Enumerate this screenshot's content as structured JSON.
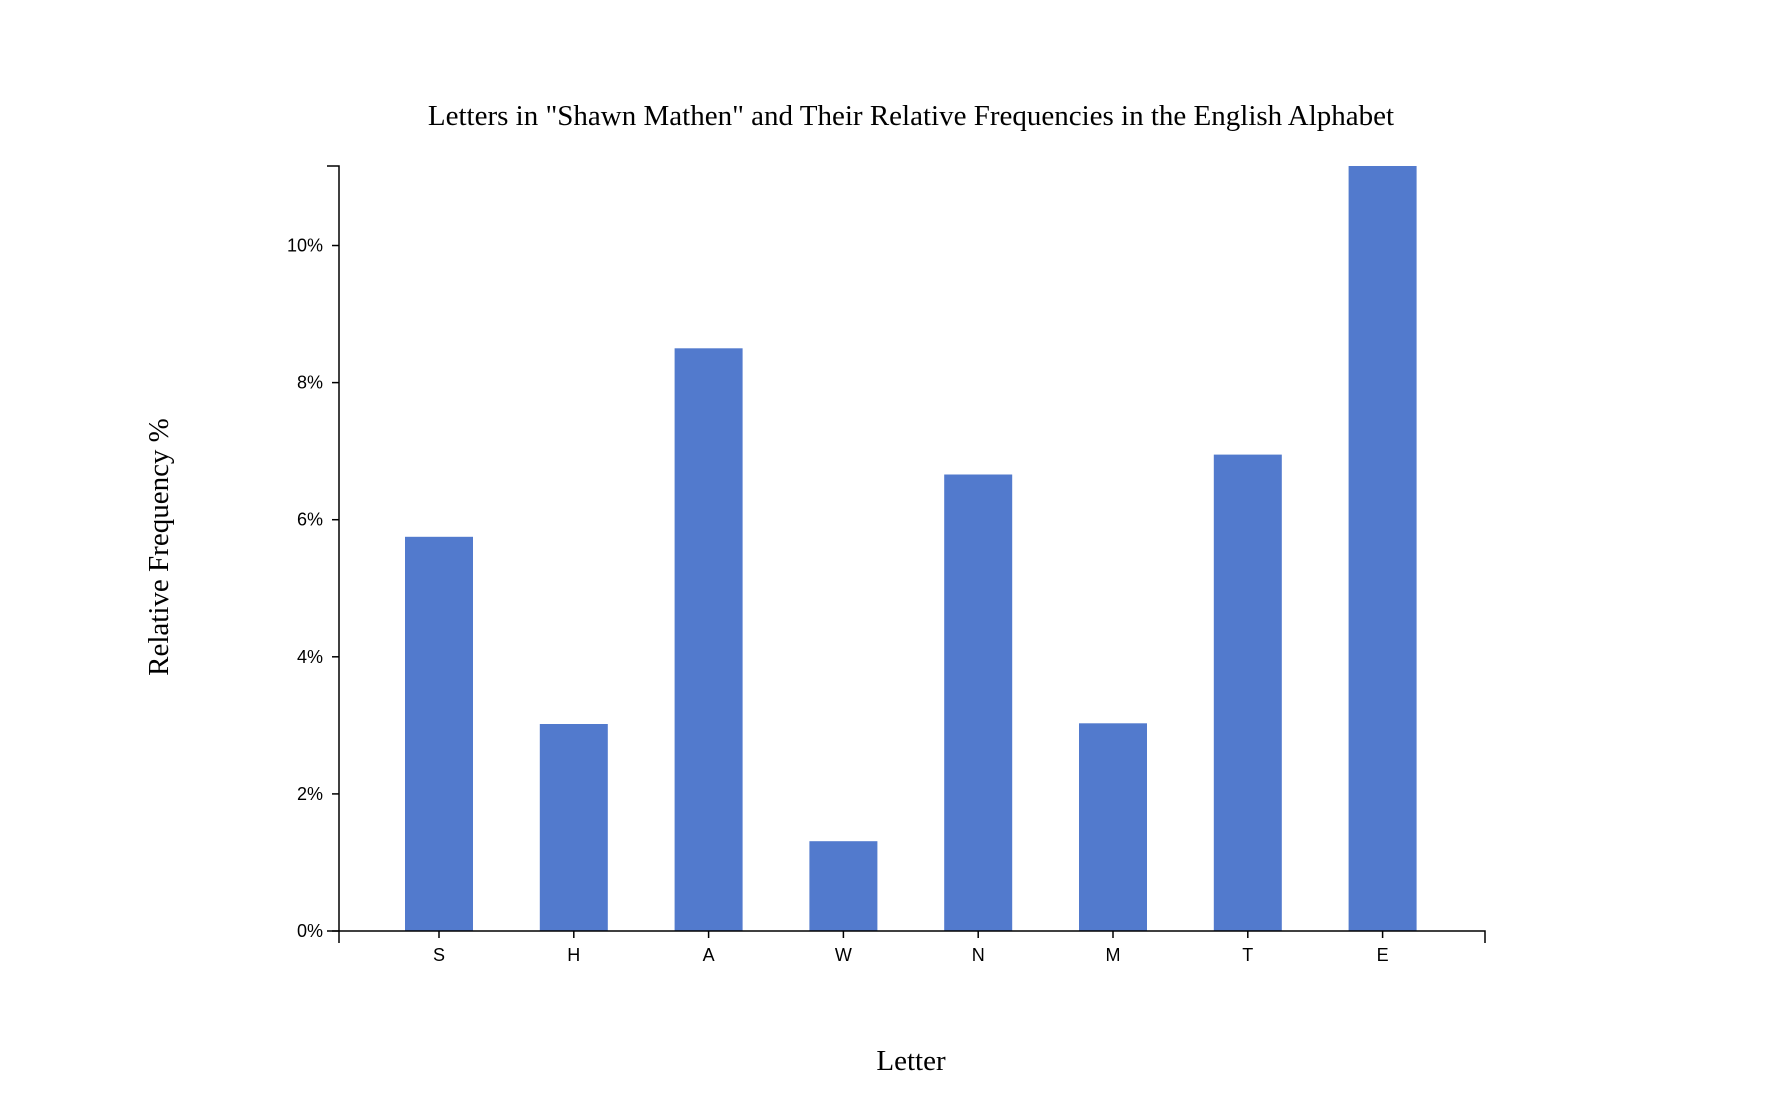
{
  "chart_data": {
    "type": "bar",
    "title": "Letters in \"Shawn Mathen\" and Their Relative Frequencies in the English Alphabet",
    "xlabel": "Letter",
    "ylabel": "Relative Frequency %",
    "categories": [
      "S",
      "H",
      "A",
      "W",
      "N",
      "M",
      "T",
      "E"
    ],
    "values": [
      5.75,
      3.02,
      8.5,
      1.31,
      6.66,
      3.03,
      6.95,
      11.16
    ],
    "ylim": [
      0,
      11.16
    ],
    "yticks": [
      0,
      2,
      4,
      6,
      8,
      10
    ],
    "ytick_labels": [
      "0%",
      "2%",
      "4%",
      "6%",
      "8%",
      "10%"
    ],
    "bar_color": "#527acd",
    "grid": false,
    "legend": "none"
  }
}
